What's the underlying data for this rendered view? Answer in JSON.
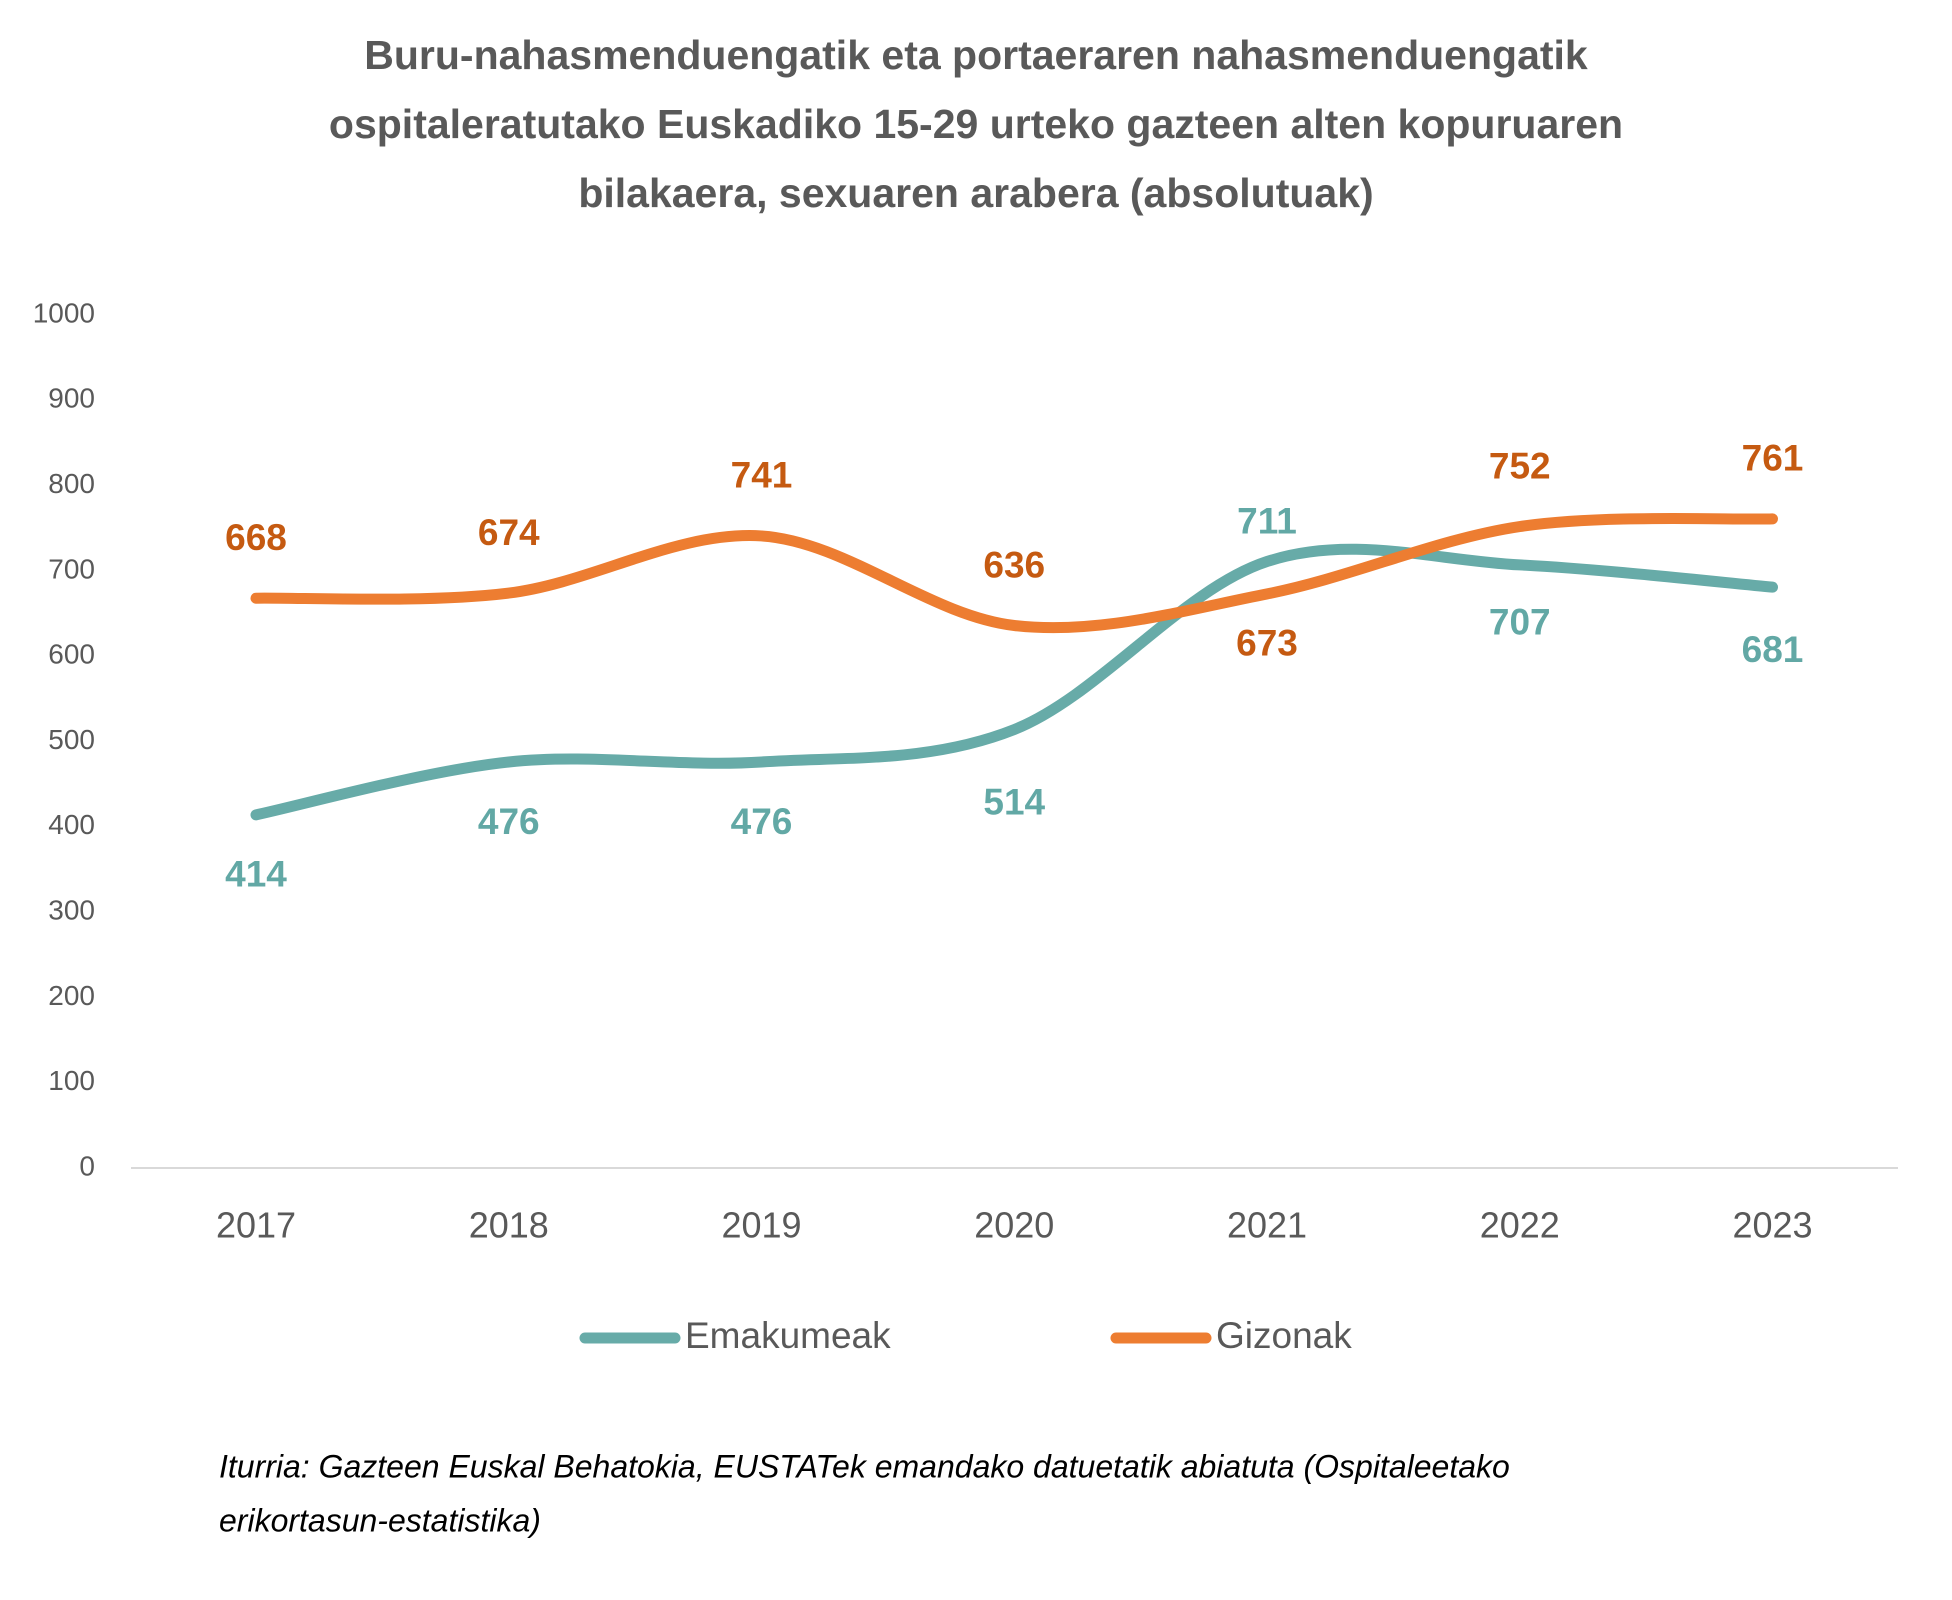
{
  "chart_data": {
    "type": "line",
    "title": [
      "Buru-nahasmenduengatik eta portaeraren nahasmenduengatik",
      "ospitaleratutako Euskadiko 15-29 urteko gazteen alten kopuruaren",
      "bilakaera, sexuaren arabera (absolutuak)"
    ],
    "categories": [
      "2017",
      "2018",
      "2019",
      "2020",
      "2021",
      "2022",
      "2023"
    ],
    "series": [
      {
        "name": "Emakumeak",
        "color": "#67aba8",
        "label_color": "#62a8a5",
        "values": [
          414,
          476,
          476,
          514,
          711,
          707,
          681
        ]
      },
      {
        "name": "Gizonak",
        "color": "#ed7d31",
        "label_color": "#c55a11",
        "values": [
          668,
          674,
          741,
          636,
          673,
          752,
          761
        ]
      }
    ],
    "ylim": [
      0,
      1000
    ],
    "yticks": [
      0,
      100,
      200,
      300,
      400,
      500,
      600,
      700,
      800,
      900,
      1000
    ],
    "grid": false,
    "legend": "bottom",
    "source": [
      "Iturria: Gazteen Euskal Behatokia, EUSTATek emandako datuetatik abiatuta (Ospitaleetako",
      "erikortasun-estatistika)"
    ]
  }
}
